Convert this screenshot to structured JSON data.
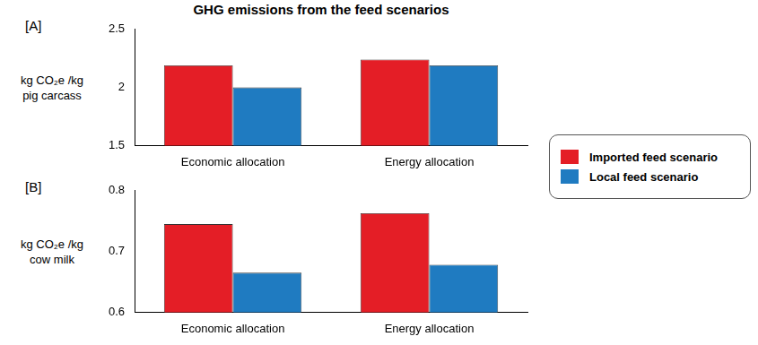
{
  "chart_data": [
    {
      "type": "bar",
      "panel_label": "[A]",
      "title": "GHG emissions from the feed scenarios",
      "ylabel": [
        "kg CO₂e /kg",
        "pig carcass"
      ],
      "categories": [
        "Economic allocation",
        "Energy allocation"
      ],
      "series": [
        {
          "name": "Imported feed scenario",
          "color": "#e41e26",
          "values": [
            2.19,
            2.24
          ]
        },
        {
          "name": "Local feed scenario",
          "color": "#1f7bc1",
          "values": [
            2.0,
            2.19
          ]
        }
      ],
      "ylim": [
        1.5,
        2.5
      ],
      "yticks": [
        1.5,
        2,
        2.5
      ],
      "grid": false,
      "legend": "right"
    },
    {
      "type": "bar",
      "panel_label": "[B]",
      "ylabel": [
        "kg CO₂e /kg",
        "cow milk"
      ],
      "categories": [
        "Economic allocation",
        "Energy allocation"
      ],
      "series": [
        {
          "name": "Imported feed scenario",
          "color": "#e41e26",
          "values": [
            0.745,
            0.763
          ]
        },
        {
          "name": "Local feed scenario",
          "color": "#1f7bc1",
          "values": [
            0.665,
            0.678
          ]
        }
      ],
      "ylim": [
        0.6,
        0.8
      ],
      "yticks": [
        0.6,
        0.7,
        0.8
      ],
      "grid": false,
      "legend": "right"
    }
  ]
}
